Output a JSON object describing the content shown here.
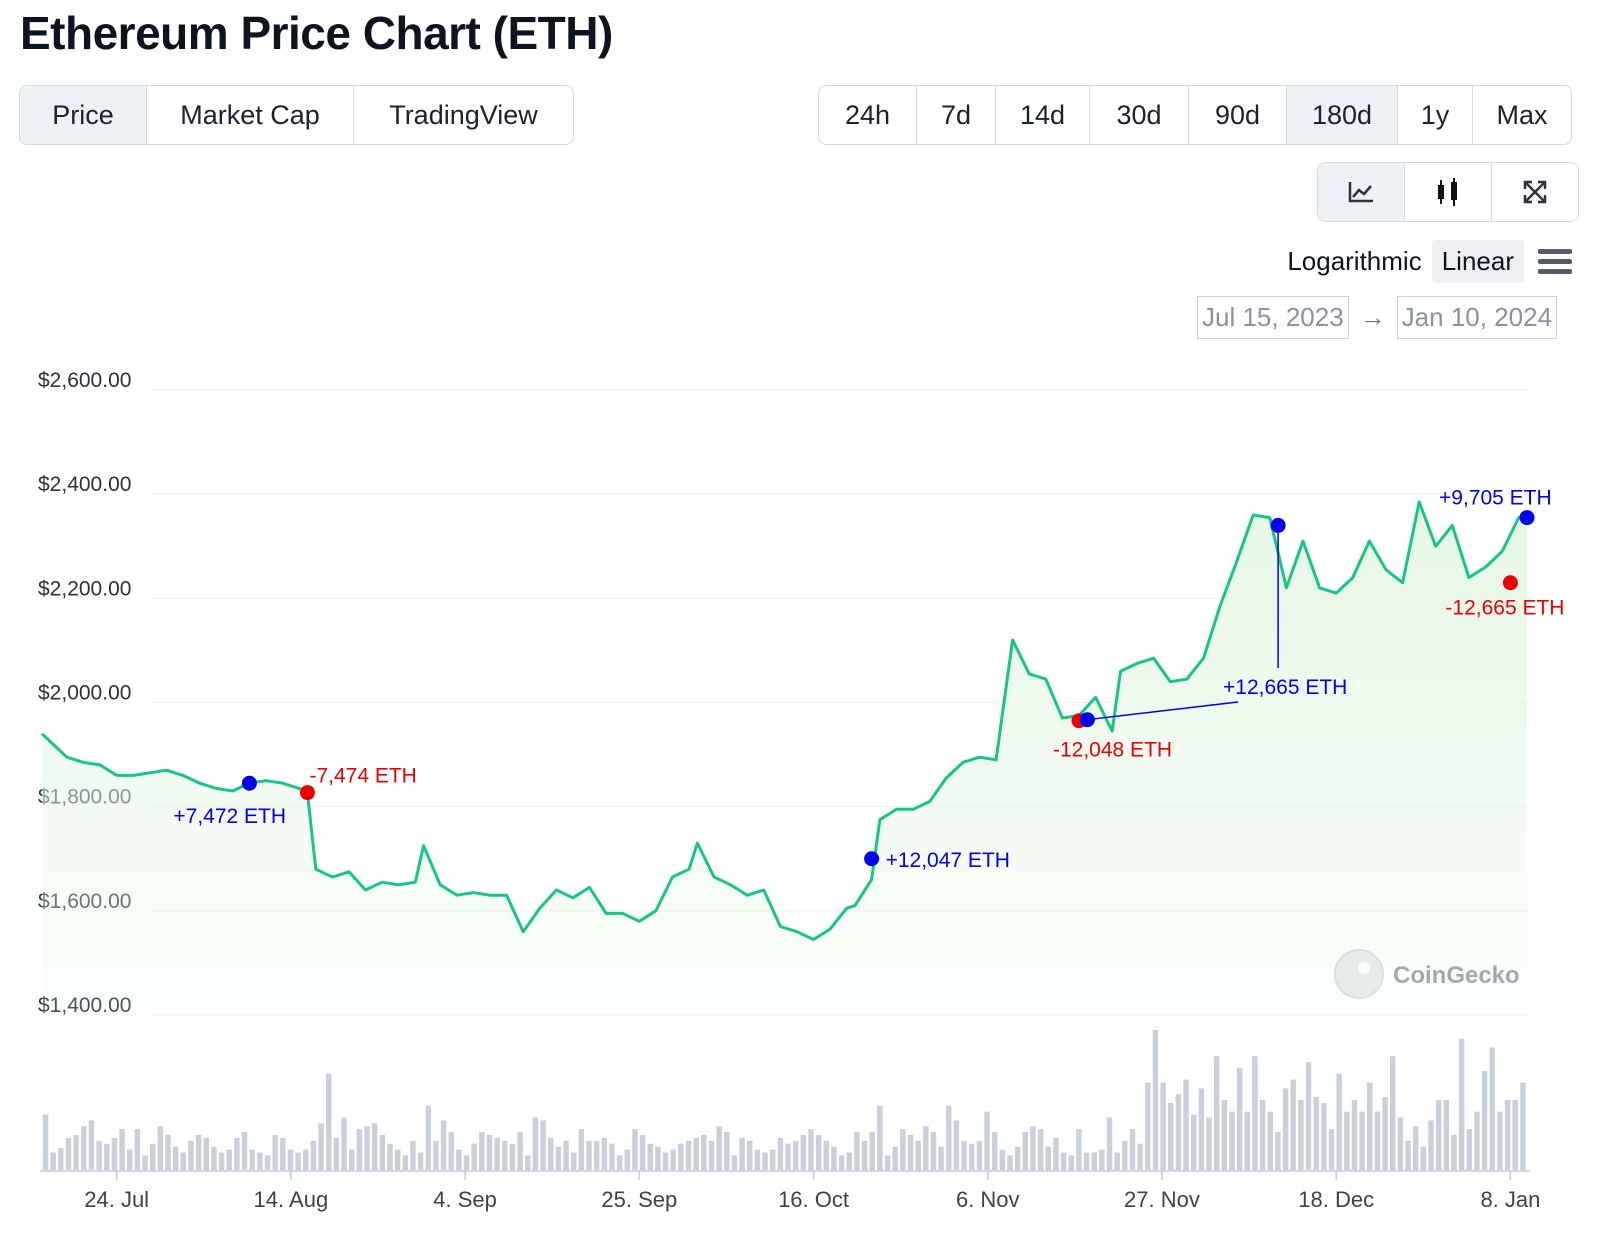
{
  "title": "Ethereum Price Chart (ETH)",
  "tabs": [
    {
      "label": "Price",
      "active": true
    },
    {
      "label": "Market Cap",
      "active": false
    },
    {
      "label": "TradingView",
      "active": false
    }
  ],
  "ranges": [
    {
      "label": "24h",
      "active": false
    },
    {
      "label": "7d",
      "active": false
    },
    {
      "label": "14d",
      "active": false
    },
    {
      "label": "30d",
      "active": false
    },
    {
      "label": "90d",
      "active": false
    },
    {
      "label": "180d",
      "active": true
    },
    {
      "label": "1y",
      "active": false
    },
    {
      "label": "Max",
      "active": false
    }
  ],
  "chart_modes": [
    {
      "icon": "line-chart-icon",
      "active": true
    },
    {
      "icon": "candlestick-icon",
      "active": false
    },
    {
      "icon": "expand-icon",
      "active": false
    }
  ],
  "scale": {
    "logarithmic": "Logarithmic",
    "linear": "Linear",
    "selected": "Linear"
  },
  "date_range": {
    "start": "Jul 15, 2023",
    "end": "Jan 10, 2024"
  },
  "watermark": "CoinGecko",
  "colors": {
    "line": "#16c784",
    "fill": "#e6f7e6",
    "buy": "#0000ee",
    "sell": "#ee0000",
    "volume": "#c8d0dd",
    "grid": "#eceff3"
  },
  "chart_data": {
    "type": "line",
    "start_date": "2023-07-15",
    "end_date": "2024-01-10",
    "yticks": [
      "$1,400.00",
      "$1,600.00",
      "$1,800.00",
      "$2,000.00",
      "$2,200.00",
      "$2,400.00",
      "$2,600.00"
    ],
    "ylim": [
      1400,
      2600
    ],
    "xticks": [
      {
        "date": "2023-07-24",
        "label": "24. Jul"
      },
      {
        "date": "2023-08-14",
        "label": "14. Aug"
      },
      {
        "date": "2023-09-04",
        "label": "4. Sep"
      },
      {
        "date": "2023-09-25",
        "label": "25. Sep"
      },
      {
        "date": "2023-10-16",
        "label": "16. Oct"
      },
      {
        "date": "2023-11-06",
        "label": "6. Nov"
      },
      {
        "date": "2023-11-27",
        "label": "27. Nov"
      },
      {
        "date": "2023-12-18",
        "label": "18. Dec"
      },
      {
        "date": "2024-01-08",
        "label": "8. Jan"
      }
    ],
    "price_series": {
      "points": [
        [
          "2023-07-15",
          1940
        ],
        [
          "2023-07-16",
          1925
        ],
        [
          "2023-07-18",
          1895
        ],
        [
          "2023-07-20",
          1885
        ],
        [
          "2023-07-22",
          1880
        ],
        [
          "2023-07-24",
          1860
        ],
        [
          "2023-07-26",
          1860
        ],
        [
          "2023-07-28",
          1865
        ],
        [
          "2023-07-30",
          1870
        ],
        [
          "2023-08-01",
          1860
        ],
        [
          "2023-08-03",
          1845
        ],
        [
          "2023-08-05",
          1835
        ],
        [
          "2023-08-07",
          1830
        ],
        [
          "2023-08-09",
          1845
        ],
        [
          "2023-08-11",
          1850
        ],
        [
          "2023-08-13",
          1845
        ],
        [
          "2023-08-15",
          1835
        ],
        [
          "2023-08-16",
          1825
        ],
        [
          "2023-08-17",
          1680
        ],
        [
          "2023-08-19",
          1665
        ],
        [
          "2023-08-21",
          1675
        ],
        [
          "2023-08-23",
          1640
        ],
        [
          "2023-08-25",
          1655
        ],
        [
          "2023-08-27",
          1650
        ],
        [
          "2023-08-29",
          1655
        ],
        [
          "2023-08-30",
          1725
        ],
        [
          "2023-09-01",
          1650
        ],
        [
          "2023-09-03",
          1630
        ],
        [
          "2023-09-05",
          1635
        ],
        [
          "2023-09-07",
          1630
        ],
        [
          "2023-09-09",
          1630
        ],
        [
          "2023-09-11",
          1560
        ],
        [
          "2023-09-13",
          1605
        ],
        [
          "2023-09-15",
          1640
        ],
        [
          "2023-09-17",
          1625
        ],
        [
          "2023-09-19",
          1645
        ],
        [
          "2023-09-21",
          1595
        ],
        [
          "2023-09-23",
          1595
        ],
        [
          "2023-09-25",
          1580
        ],
        [
          "2023-09-27",
          1600
        ],
        [
          "2023-09-29",
          1665
        ],
        [
          "2023-10-01",
          1680
        ],
        [
          "2023-10-02",
          1730
        ],
        [
          "2023-10-04",
          1665
        ],
        [
          "2023-10-06",
          1650
        ],
        [
          "2023-10-08",
          1630
        ],
        [
          "2023-10-10",
          1640
        ],
        [
          "2023-10-12",
          1570
        ],
        [
          "2023-10-14",
          1560
        ],
        [
          "2023-10-16",
          1545
        ],
        [
          "2023-10-18",
          1565
        ],
        [
          "2023-10-20",
          1605
        ],
        [
          "2023-10-21",
          1610
        ],
        [
          "2023-10-23",
          1660
        ],
        [
          "2023-10-24",
          1775
        ],
        [
          "2023-10-26",
          1795
        ],
        [
          "2023-10-28",
          1795
        ],
        [
          "2023-10-30",
          1810
        ],
        [
          "2023-11-01",
          1855
        ],
        [
          "2023-11-03",
          1885
        ],
        [
          "2023-11-05",
          1895
        ],
        [
          "2023-11-07",
          1890
        ],
        [
          "2023-11-09",
          2120
        ],
        [
          "2023-11-11",
          2055
        ],
        [
          "2023-11-13",
          2045
        ],
        [
          "2023-11-15",
          1970
        ],
        [
          "2023-11-17",
          1975
        ],
        [
          "2023-11-19",
          2010
        ],
        [
          "2023-11-21",
          1945
        ],
        [
          "2023-11-22",
          2060
        ],
        [
          "2023-11-24",
          2075
        ],
        [
          "2023-11-26",
          2085
        ],
        [
          "2023-11-28",
          2040
        ],
        [
          "2023-11-30",
          2045
        ],
        [
          "2023-12-02",
          2085
        ],
        [
          "2023-12-04",
          2185
        ],
        [
          "2023-12-06",
          2270
        ],
        [
          "2023-12-08",
          2360
        ],
        [
          "2023-12-10",
          2355
        ],
        [
          "2023-12-12",
          2220
        ],
        [
          "2023-12-14",
          2310
        ],
        [
          "2023-12-16",
          2220
        ],
        [
          "2023-12-18",
          2210
        ],
        [
          "2023-12-20",
          2240
        ],
        [
          "2023-12-22",
          2310
        ],
        [
          "2023-12-24",
          2255
        ],
        [
          "2023-12-26",
          2230
        ],
        [
          "2023-12-28",
          2385
        ],
        [
          "2023-12-30",
          2300
        ],
        [
          "2024-01-01",
          2340
        ],
        [
          "2024-01-03",
          2240
        ],
        [
          "2024-01-05",
          2260
        ],
        [
          "2024-01-07",
          2290
        ],
        [
          "2024-01-09",
          2355
        ],
        [
          "2024-01-10",
          2360
        ]
      ]
    },
    "trades": [
      {
        "date": "2023-08-09",
        "price": 1845,
        "label": "+7,472 ETH",
        "side": "buy"
      },
      {
        "date": "2023-08-16",
        "price": 1827,
        "label": "-7,474 ETH",
        "side": "sell"
      },
      {
        "date": "2023-10-23",
        "price": 1700,
        "label": "+12,047 ETH",
        "side": "buy"
      },
      {
        "date": "2023-11-17",
        "price": 1965,
        "label": "-12,048 ETH",
        "side": "sell"
      },
      {
        "date": "2023-11-18",
        "price": 1967,
        "label": "+12,665 ETH",
        "side": "buy"
      },
      {
        "date": "2023-12-11",
        "price": 2340,
        "label": "",
        "side": "buy"
      },
      {
        "date": "2024-01-08",
        "price": 2230,
        "label": "-12,665 ETH",
        "side": "sell"
      },
      {
        "date": "2024-01-10",
        "price": 2355,
        "label": "+9,705 ETH",
        "side": "buy"
      }
    ],
    "volume": {
      "values": [
        38,
        12,
        15,
        22,
        24,
        30,
        34,
        20,
        18,
        22,
        28,
        14,
        28,
        10,
        18,
        30,
        24,
        16,
        12,
        20,
        24,
        22,
        16,
        12,
        14,
        22,
        26,
        14,
        12,
        10,
        24,
        22,
        14,
        12,
        14,
        20,
        32,
        66,
        22,
        36,
        14,
        28,
        30,
        32,
        24,
        18,
        14,
        10,
        20,
        12,
        44,
        20,
        34,
        26,
        14,
        10,
        18,
        26,
        24,
        22,
        20,
        18,
        26,
        10,
        36,
        34,
        22,
        16,
        20,
        12,
        28,
        20,
        20,
        22,
        18,
        10,
        14,
        28,
        24,
        18,
        16,
        12,
        14,
        18,
        20,
        22,
        24,
        20,
        30,
        26,
        10,
        22,
        20,
        14,
        12,
        14,
        22,
        18,
        20,
        24,
        28,
        24,
        20,
        16,
        10,
        12,
        26,
        20,
        26,
        44,
        10,
        16,
        28,
        24,
        20,
        30,
        26,
        16,
        44,
        34,
        20,
        18,
        20,
        40,
        26,
        14,
        10,
        16,
        26,
        30,
        28,
        16,
        22,
        12,
        10,
        28,
        12,
        12,
        14,
        36,
        12,
        20,
        28,
        18,
        60,
        96,
        60,
        46,
        52,
        62,
        38,
        56,
        36,
        78,
        48,
        40,
        70,
        40,
        78,
        48,
        40,
        26,
        56,
        62,
        48,
        74,
        50,
        46,
        28,
        66,
        40,
        48,
        40,
        60,
        40,
        50,
        78,
        36,
        20,
        30,
        16,
        34,
        48,
        48,
        24,
        90,
        28,
        40,
        68,
        84,
        40,
        48,
        48,
        60
      ]
    }
  }
}
